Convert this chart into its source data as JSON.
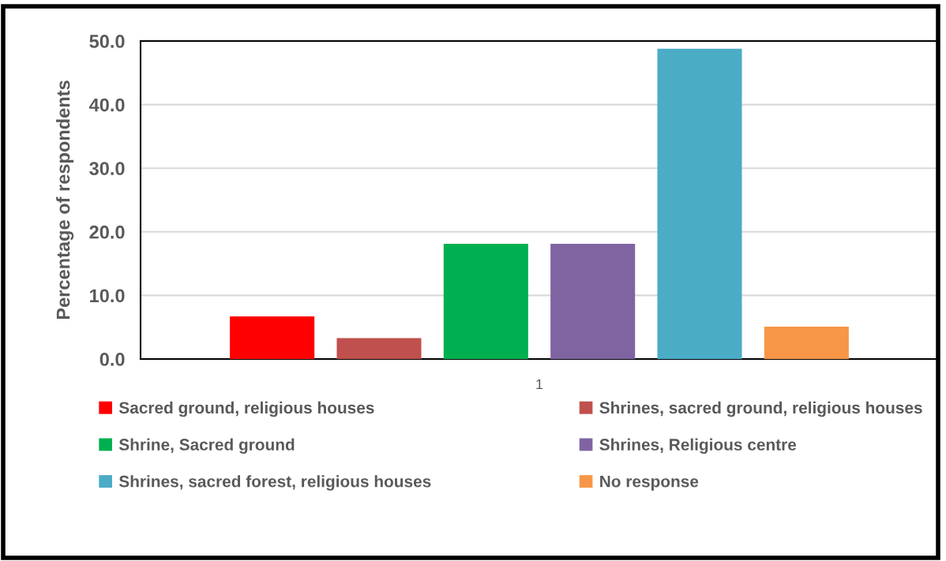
{
  "chart_data": {
    "type": "bar",
    "ylabel": "Percentage of respondents",
    "categories": [
      "1"
    ],
    "series": [
      {
        "name": "Sacred ground, religious houses",
        "color": "#ff0000",
        "values": [
          6.7
        ]
      },
      {
        "name": "Shrines, sacred ground, religious houses",
        "color": "#c0504d",
        "values": [
          3.3
        ]
      },
      {
        "name": "Shrine, Sacred ground",
        "color": "#00b050",
        "values": [
          18.1
        ]
      },
      {
        "name": "Shrines, Religious centre",
        "color": "#8064a2",
        "values": [
          18.1
        ]
      },
      {
        "name": "Shrines, sacred forest, religious houses",
        "color": "#4bacc6",
        "values": [
          48.8
        ]
      },
      {
        "name": "No response",
        "color": "#f79646",
        "values": [
          5.1
        ]
      }
    ],
    "ylim": [
      0,
      50
    ],
    "yticks": [
      {
        "value": 0,
        "label": "0.0"
      },
      {
        "value": 10,
        "label": "10.0"
      },
      {
        "value": 20,
        "label": "20.0"
      },
      {
        "value": 30,
        "label": "30.0"
      },
      {
        "value": 40,
        "label": "40.0"
      },
      {
        "value": 50,
        "label": "50.0"
      }
    ],
    "grid": "y",
    "legend": "bottom"
  }
}
